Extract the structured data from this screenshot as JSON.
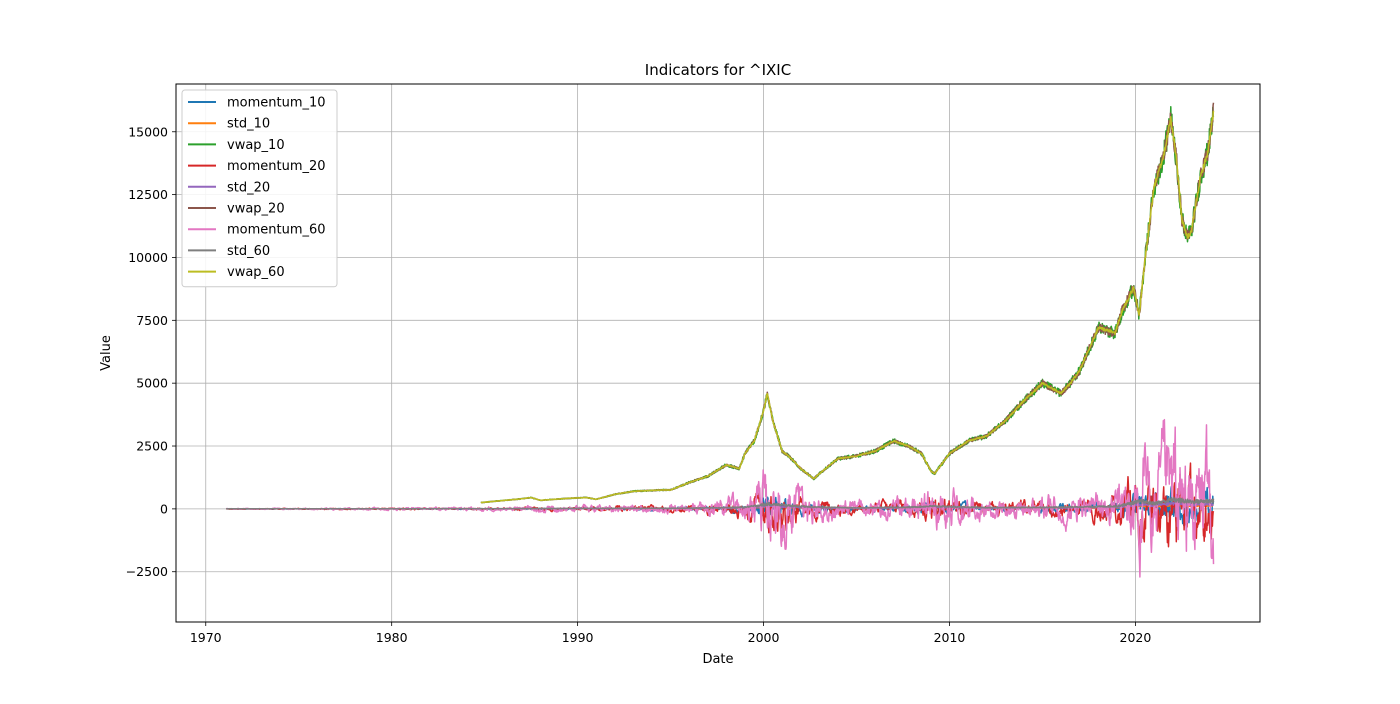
{
  "chart_data": {
    "type": "line",
    "title": "Indicators for ^IXIC",
    "xlabel": "Date",
    "ylabel": "Value",
    "xlim": [
      1968.4,
      2026.7
    ],
    "ylim": [
      -4500,
      16900
    ],
    "xticks": [
      1970,
      1980,
      1990,
      2000,
      2010,
      2020
    ],
    "xtick_labels": [
      "1970",
      "1980",
      "1990",
      "2000",
      "2010",
      "2020"
    ],
    "yticks": [
      -2500,
      0,
      2500,
      5000,
      7500,
      10000,
      12500,
      15000
    ],
    "ytick_labels": [
      "−2500",
      "0",
      "2500",
      "5000",
      "7500",
      "10000",
      "12500",
      "15000"
    ],
    "grid": true,
    "legend_position": "top-left",
    "series": [
      {
        "name": "momentum_10",
        "color": "#1f77b4",
        "kind": "oscillator",
        "start": 1971.1,
        "amplitude": 0.06,
        "seed": 11
      },
      {
        "name": "std_10",
        "color": "#ff7f0e",
        "kind": "std",
        "start": 1971.1,
        "amplitude": 0.03,
        "seed": 12
      },
      {
        "name": "vwap_10",
        "color": "#2ca02c",
        "kind": "price",
        "start": 1984.8,
        "noise": 0.035,
        "seed": 13
      },
      {
        "name": "momentum_20",
        "color": "#d62728",
        "kind": "oscillator",
        "start": 1971.1,
        "amplitude": 0.12,
        "seed": 14
      },
      {
        "name": "std_20",
        "color": "#9467bd",
        "kind": "std",
        "start": 1971.1,
        "amplitude": 0.04,
        "seed": 15
      },
      {
        "name": "vwap_20",
        "color": "#8c564b",
        "kind": "price",
        "start": 1984.8,
        "noise": 0.025,
        "seed": 16
      },
      {
        "name": "momentum_60",
        "color": "#e377c2",
        "kind": "oscillator",
        "start": 1971.1,
        "amplitude": 0.2,
        "seed": 17
      },
      {
        "name": "std_60",
        "color": "#7f7f7f",
        "kind": "std",
        "start": 1971.1,
        "amplitude": 0.07,
        "seed": 18
      },
      {
        "name": "vwap_60",
        "color": "#bcbd22",
        "kind": "price",
        "start": 1984.8,
        "noise": 0.008,
        "seed": 19
      }
    ],
    "index_level": {
      "x": [
        1971.1,
        1975,
        1980,
        1984.8,
        1985.5,
        1987.0,
        1987.5,
        1988.0,
        1989.5,
        1990.5,
        1991.0,
        1992.0,
        1993.0,
        1994.5,
        1995.0,
        1996.0,
        1997.0,
        1998.0,
        1998.7,
        1999.0,
        1999.5,
        2000.0,
        2000.2,
        2000.5,
        2001.0,
        2001.5,
        2002.0,
        2002.7,
        2003.0,
        2004.0,
        2005.0,
        2006.0,
        2007.0,
        2007.8,
        2008.5,
        2009.0,
        2009.2,
        2010.0,
        2011.0,
        2012.0,
        2013.0,
        2014.0,
        2015.0,
        2016.0,
        2016.5,
        2017.0,
        2018.0,
        2018.9,
        2019.3,
        2019.9,
        2020.2,
        2020.5,
        2021.0,
        2021.5,
        2021.9,
        2022.2,
        2022.5,
        2022.8,
        2023.0,
        2023.5,
        2023.9,
        2024.2
      ],
      "y": [
        90,
        75,
        160,
        250,
        300,
        400,
        450,
        340,
        420,
        450,
        380,
        580,
        700,
        750,
        750,
        1050,
        1300,
        1750,
        1600,
        2200,
        2700,
        3900,
        4600,
        3500,
        2300,
        2000,
        1600,
        1200,
        1400,
        2000,
        2100,
        2300,
        2700,
        2500,
        2200,
        1500,
        1400,
        2200,
        2700,
        2900,
        3500,
        4300,
        5000,
        4600,
        5000,
        5500,
        7200,
        7000,
        7900,
        8800,
        7700,
        9800,
        12800,
        14000,
        15500,
        14000,
        11500,
        10800,
        11000,
        13200,
        14200,
        15800
      ]
    },
    "volatility_level": {
      "x": [
        1971,
        1985,
        1990,
        1996,
        1999,
        2000.3,
        2001,
        2002.5,
        2005,
        2008,
        2009,
        2012,
        2016,
        2018,
        2019,
        2020.3,
        2021,
        2022,
        2023,
        2024.3
      ],
      "y": [
        10,
        40,
        80,
        120,
        300,
        900,
        700,
        350,
        180,
        320,
        500,
        220,
        300,
        420,
        480,
        1400,
        1000,
        1700,
        1300,
        1500
      ]
    }
  }
}
